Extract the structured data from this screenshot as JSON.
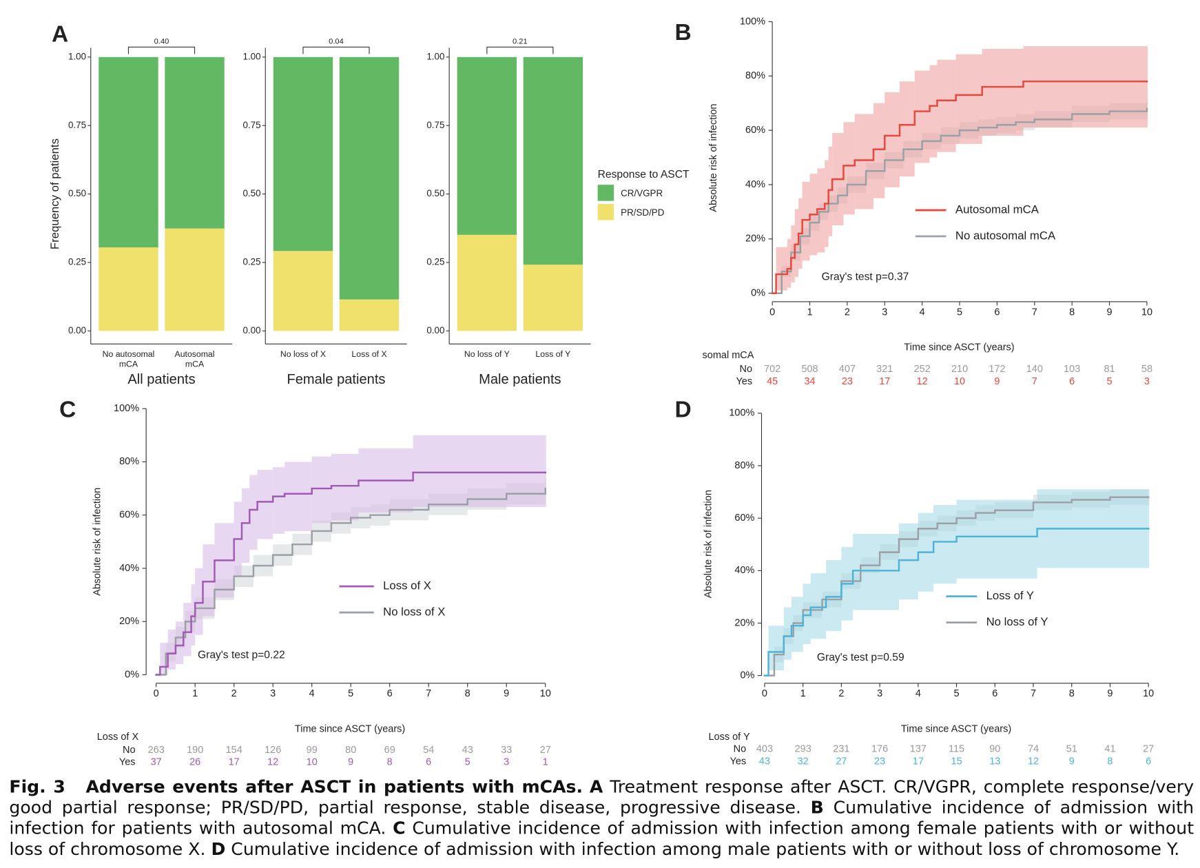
{
  "chart_data": [
    {
      "type": "bar",
      "stacked": true,
      "panel_label": "A",
      "annotation": "0.40",
      "ylabel": "Frequency of patients",
      "xlabel": "All patients",
      "categories": [
        "No autosomal mCA",
        "Autosomal mCA"
      ],
      "ylim": [
        0,
        1
      ],
      "yticks": [
        {
          "value": 0,
          "label": "0.00"
        },
        {
          "value": 0.25,
          "label": "0.25"
        },
        {
          "value": 0.5,
          "label": "0.50"
        },
        {
          "value": 0.75,
          "label": "0.75"
        },
        {
          "value": 1,
          "label": "1.00"
        }
      ],
      "series": [
        {
          "color": "#f0e16c",
          "values": [
            0.305,
            0.374
          ]
        },
        {
          "color": "#63b863",
          "values": [
            0.695,
            0.626
          ]
        }
      ]
    },
    {
      "type": "bar",
      "stacked": true,
      "annotation": "0.04",
      "xlabel": "Female patients",
      "categories": [
        "No loss of X",
        "Loss of X"
      ],
      "ylim": [
        0,
        1
      ],
      "yticks": [
        {
          "value": 0,
          "label": "0.00"
        },
        {
          "value": 0.25,
          "label": "0.25"
        },
        {
          "value": 0.5,
          "label": "0.50"
        },
        {
          "value": 0.75,
          "label": "0.75"
        },
        {
          "value": 1,
          "label": "1.00"
        }
      ],
      "series": [
        {
          "color": "#f0e16c",
          "values": [
            0.292,
            0.115
          ]
        },
        {
          "color": "#63b863",
          "values": [
            0.708,
            0.885
          ]
        }
      ]
    },
    {
      "type": "bar",
      "stacked": true,
      "annotation": "0.21",
      "xlabel": "Male patients",
      "legend_title": "Response to ASCT",
      "categories": [
        "No loss of Y",
        "Loss of Y"
      ],
      "ylim": [
        0,
        1
      ],
      "yticks": [
        {
          "value": 0,
          "label": "0.00"
        },
        {
          "value": 0.25,
          "label": "0.25"
        },
        {
          "value": 0.5,
          "label": "0.50"
        },
        {
          "value": 0.75,
          "label": "0.75"
        },
        {
          "value": 1,
          "label": "1.00"
        }
      ],
      "series": [
        {
          "name": "PR/SD/PD",
          "color": "#f0e16c",
          "values": [
            0.351,
            0.242
          ]
        },
        {
          "name": "CR/VGPR",
          "color": "#63b863",
          "values": [
            0.649,
            0.758
          ]
        }
      ]
    },
    {
      "type": "step",
      "panel_label": "B",
      "xlabel": "Time since ASCT (years)",
      "ylabel": "Absolute risk of infection",
      "annotation": "Gray's test p=0.37",
      "xlim": [
        0,
        10
      ],
      "ylim": [
        0,
        100
      ],
      "xticks": [
        0,
        1,
        2,
        3,
        4,
        5,
        6,
        7,
        8,
        9,
        10
      ],
      "yticks": [
        {
          "value": 0,
          "label": "0%"
        },
        {
          "value": 20,
          "label": "20%"
        },
        {
          "value": 40,
          "label": "40%"
        },
        {
          "value": 60,
          "label": "60%"
        },
        {
          "value": 80,
          "label": "80%"
        },
        {
          "value": 100,
          "label": "100%"
        }
      ],
      "series": [
        {
          "name": "Autosomal mCA",
          "color": "#e8473b",
          "band_color": "#eea2a2",
          "x": [
            0,
            0.1,
            0.4,
            0.5,
            0.6,
            0.7,
            0.8,
            1.0,
            1.2,
            1.4,
            1.5,
            1.6,
            1.9,
            2.2,
            2.7,
            3.0,
            3.4,
            3.8,
            4.2,
            4.4,
            4.9,
            5.6,
            6.7,
            10
          ],
          "values": [
            0,
            7,
            9,
            13,
            18,
            22,
            27,
            29,
            31,
            33,
            38,
            42,
            47,
            49,
            53,
            58,
            62,
            67,
            69,
            71,
            73,
            76,
            78,
            78
          ],
          "ci_lower": [
            0,
            1,
            2,
            4,
            6,
            9,
            12,
            14,
            15,
            17,
            21,
            25,
            29,
            31,
            35,
            39,
            43,
            48,
            50,
            52,
            55,
            58,
            61,
            61
          ],
          "ci_upper": [
            0,
            17,
            20,
            25,
            31,
            35,
            41,
            44,
            46,
            49,
            54,
            59,
            63,
            66,
            70,
            74,
            78,
            82,
            84,
            86,
            88,
            90,
            91,
            91
          ]
        },
        {
          "name": "No autosomal mCA",
          "color": "#9aa0a6",
          "band_color": "#d6dadb",
          "x": [
            0,
            0.25,
            0.5,
            0.75,
            1,
            1.25,
            1.5,
            1.75,
            2,
            2.5,
            3,
            3.5,
            4,
            4.5,
            5,
            5.5,
            6,
            6.5,
            7,
            8,
            9,
            10
          ],
          "values": [
            0,
            8,
            15,
            21,
            26,
            30,
            33,
            36,
            40,
            45,
            49,
            53,
            56,
            58,
            60,
            61,
            62,
            63,
            64,
            66,
            67,
            68
          ],
          "ci_lower": [
            0,
            6,
            12,
            18,
            23,
            27,
            30,
            33,
            37,
            42,
            46,
            50,
            53,
            55,
            57,
            58,
            59,
            60,
            61,
            63,
            64,
            65
          ],
          "ci_upper": [
            0,
            10,
            18,
            24,
            29,
            33,
            36,
            39,
            43,
            48,
            52,
            56,
            59,
            61,
            63,
            64,
            65,
            66,
            67,
            69,
            70,
            71
          ]
        }
      ],
      "risk_table": {
        "title": "somal mCA",
        "rows": [
          {
            "label": "No",
            "color": "#9a9a9a",
            "values": [
              702,
              508,
              407,
              321,
              252,
              210,
              172,
              140,
              103,
              81,
              58
            ]
          },
          {
            "label": "Yes",
            "color": "#e8473b",
            "values": [
              45,
              34,
              23,
              17,
              12,
              10,
              9,
              7,
              6,
              5,
              3
            ]
          }
        ]
      }
    },
    {
      "type": "step",
      "panel_label": "C",
      "xlabel": "Time since ASCT (years)",
      "ylabel": "Absolute risk of infection",
      "annotation": "Gray's test p=0.22",
      "xlim": [
        0,
        10
      ],
      "ylim": [
        0,
        100
      ],
      "xticks": [
        0,
        1,
        2,
        3,
        4,
        5,
        6,
        7,
        8,
        9,
        10
      ],
      "yticks": [
        {
          "value": 0,
          "label": "0%"
        },
        {
          "value": 20,
          "label": "20%"
        },
        {
          "value": 40,
          "label": "40%"
        },
        {
          "value": 60,
          "label": "60%"
        },
        {
          "value": 80,
          "label": "80%"
        },
        {
          "value": 100,
          "label": "100%"
        }
      ],
      "series": [
        {
          "name": "Loss of X",
          "color": "#a05ab4",
          "band_color": "#d9bde6",
          "x": [
            0,
            0.1,
            0.3,
            0.5,
            0.7,
            0.9,
            1.0,
            1.2,
            1.5,
            2.0,
            2.2,
            2.4,
            2.6,
            3.0,
            3.3,
            4.0,
            4.5,
            5.2,
            6.6,
            10
          ],
          "values": [
            0,
            3,
            8,
            11,
            16,
            22,
            27,
            35,
            43,
            51,
            57,
            62,
            65,
            67,
            68,
            70,
            71,
            73,
            76,
            76
          ],
          "ci_lower": [
            0,
            0,
            2,
            4,
            7,
            11,
            15,
            22,
            29,
            37,
            42,
            47,
            51,
            53,
            54,
            57,
            58,
            61,
            63,
            63
          ],
          "ci_upper": [
            0,
            12,
            17,
            20,
            27,
            34,
            40,
            49,
            57,
            65,
            70,
            75,
            77,
            78,
            80,
            82,
            83,
            85,
            90,
            90
          ]
        },
        {
          "name": "No loss of X",
          "color": "#9aa0a6",
          "band_color": "#d6dadb",
          "x": [
            0,
            0.25,
            0.5,
            0.75,
            1,
            1.5,
            2,
            2.5,
            3,
            3.5,
            4,
            4.5,
            5,
            5.5,
            6,
            7,
            8,
            9,
            10
          ],
          "values": [
            0,
            8,
            14,
            20,
            25,
            32,
            37,
            41,
            45,
            49,
            54,
            57,
            59,
            60,
            62,
            64,
            66,
            68,
            70
          ],
          "ci_lower": [
            0,
            5,
            10,
            16,
            21,
            28,
            33,
            37,
            41,
            45,
            50,
            53,
            55,
            56,
            58,
            60,
            62,
            64,
            66
          ],
          "ci_upper": [
            0,
            12,
            18,
            24,
            29,
            36,
            41,
            45,
            49,
            53,
            58,
            61,
            63,
            64,
            66,
            68,
            70,
            72,
            74
          ]
        }
      ],
      "risk_table": {
        "title": "Loss of X",
        "rows": [
          {
            "label": "No",
            "color": "#9a9a9a",
            "values": [
              263,
              190,
              154,
              126,
              99,
              80,
              69,
              54,
              43,
              33,
              27
            ]
          },
          {
            "label": "Yes",
            "color": "#a05ab4",
            "values": [
              37,
              26,
              17,
              12,
              10,
              9,
              8,
              6,
              5,
              3,
              1
            ]
          }
        ]
      }
    },
    {
      "type": "step",
      "panel_label": "D",
      "xlabel": "Time since ASCT (years)",
      "ylabel": "Absolute risk of infection",
      "annotation": "Gray's test p=0.59",
      "xlim": [
        0,
        10
      ],
      "ylim": [
        0,
        100
      ],
      "xticks": [
        0,
        1,
        2,
        3,
        4,
        5,
        6,
        7,
        8,
        9,
        10
      ],
      "yticks": [
        {
          "value": 0,
          "label": "0%"
        },
        {
          "value": 20,
          "label": "20%"
        },
        {
          "value": 40,
          "label": "40%"
        },
        {
          "value": 60,
          "label": "60%"
        },
        {
          "value": 80,
          "label": "80%"
        },
        {
          "value": 100,
          "label": "100%"
        }
      ],
      "series": [
        {
          "name": "Loss of Y",
          "color": "#4cb4d8",
          "band_color": "#a6dbe8",
          "x": [
            0,
            0.1,
            0.5,
            0.7,
            1.0,
            1.2,
            1.6,
            2.0,
            2.3,
            3.5,
            4.0,
            4.4,
            5.0,
            7.1,
            10
          ],
          "values": [
            0,
            9,
            15,
            19,
            23,
            26,
            30,
            35,
            40,
            44,
            47,
            51,
            53,
            56,
            56
          ],
          "ci_lower": [
            0,
            2,
            6,
            9,
            12,
            14,
            17,
            21,
            25,
            29,
            32,
            35,
            37,
            41,
            41
          ],
          "ci_upper": [
            0,
            19,
            26,
            30,
            35,
            39,
            44,
            49,
            54,
            58,
            62,
            65,
            67,
            71,
            71
          ]
        },
        {
          "name": "No loss of Y",
          "color": "#9aa0a6",
          "band_color": "#d6dadb",
          "x": [
            0,
            0.25,
            0.5,
            0.75,
            1,
            1.5,
            2,
            2.5,
            3,
            3.5,
            4,
            4.5,
            5,
            5.5,
            6,
            7,
            8,
            9,
            10
          ],
          "values": [
            0,
            8,
            15,
            20,
            25,
            29,
            36,
            42,
            47,
            52,
            56,
            58,
            60,
            62,
            63,
            66,
            67,
            68,
            68
          ],
          "ci_lower": [
            0,
            5,
            12,
            17,
            22,
            26,
            33,
            39,
            44,
            49,
            53,
            55,
            57,
            59,
            60,
            63,
            64,
            65,
            65
          ],
          "ci_upper": [
            0,
            11,
            18,
            23,
            28,
            32,
            39,
            45,
            50,
            55,
            59,
            61,
            63,
            65,
            66,
            69,
            70,
            71,
            71
          ]
        }
      ],
      "risk_table": {
        "title": "Loss of Y",
        "rows": [
          {
            "label": "No",
            "color": "#9a9a9a",
            "values": [
              403,
              293,
              231,
              176,
              137,
              115,
              90,
              74,
              51,
              41,
              27
            ]
          },
          {
            "label": "Yes",
            "color": "#4cb4d8",
            "values": [
              43,
              32,
              27,
              23,
              17,
              15,
              13,
              12,
              9,
              8,
              6
            ]
          }
        ]
      }
    }
  ],
  "caption": {
    "label": "Fig. 3",
    "title": "Adverse events after ASCT in patients with mCAs.",
    "parts": [
      {
        "letter": "A",
        "text": "Treatment response after ASCT. CR/VGPR, complete response/very good partial response; PR/SD/PD, partial response, stable disease, progressive disease."
      },
      {
        "letter": "B",
        "text": "Cumulative incidence of admission with infection for patients with autosomal mCA."
      },
      {
        "letter": "C",
        "text": "Cumulative incidence of admission with infection among female patients with or without loss of chromosome X."
      },
      {
        "letter": "D",
        "text": "Cumulative incidence of admission with infection among male patients with or without loss of chromosome Y."
      }
    ]
  }
}
